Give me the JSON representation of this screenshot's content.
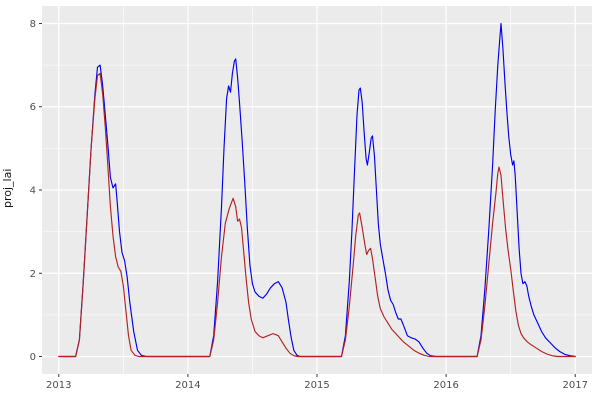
{
  "chart_data": {
    "type": "line",
    "title": "",
    "xlabel": "",
    "ylabel": "proj_lai",
    "legend": "none",
    "grid": true,
    "panel_background": "#EBEBEB",
    "grid_color": "#FFFFFF",
    "axis_text_color": "#4D4D4D",
    "tick_mark_color": "#333333",
    "xlim": [
      2012.87,
      2017.13
    ],
    "ylim": [
      -0.42,
      8.42
    ],
    "x_ticks": [
      2013,
      2014,
      2015,
      2016,
      2017
    ],
    "x_minor_ticks": [
      2013.5,
      2014.5,
      2015.5,
      2016.5
    ],
    "y_ticks": [
      0,
      2,
      4,
      6,
      8
    ],
    "y_minor_ticks": [
      1,
      3,
      5,
      7
    ],
    "series": [
      {
        "name": "blue-series",
        "color": "#0000EE",
        "points": [
          [
            2013.0,
            0
          ],
          [
            2013.13,
            0
          ],
          [
            2013.16,
            0.4
          ],
          [
            2013.19,
            1.8
          ],
          [
            2013.22,
            3.4
          ],
          [
            2013.25,
            5.0
          ],
          [
            2013.28,
            6.3
          ],
          [
            2013.3,
            6.95
          ],
          [
            2013.32,
            7.0
          ],
          [
            2013.34,
            6.5
          ],
          [
            2013.36,
            5.8
          ],
          [
            2013.38,
            5.1
          ],
          [
            2013.4,
            4.3
          ],
          [
            2013.42,
            4.05
          ],
          [
            2013.44,
            4.15
          ],
          [
            2013.45,
            3.8
          ],
          [
            2013.47,
            3.0
          ],
          [
            2013.49,
            2.5
          ],
          [
            2013.51,
            2.3
          ],
          [
            2013.53,
            1.9
          ],
          [
            2013.55,
            1.3
          ],
          [
            2013.58,
            0.6
          ],
          [
            2013.61,
            0.15
          ],
          [
            2013.64,
            0.03
          ],
          [
            2013.68,
            0
          ],
          [
            2014.17,
            0
          ],
          [
            2014.2,
            0.5
          ],
          [
            2014.23,
            1.8
          ],
          [
            2014.26,
            3.6
          ],
          [
            2014.28,
            5.0
          ],
          [
            2014.3,
            6.2
          ],
          [
            2014.315,
            6.5
          ],
          [
            2014.33,
            6.35
          ],
          [
            2014.345,
            6.8
          ],
          [
            2014.36,
            7.1
          ],
          [
            2014.37,
            7.15
          ],
          [
            2014.385,
            6.7
          ],
          [
            2014.4,
            6.1
          ],
          [
            2014.42,
            5.2
          ],
          [
            2014.44,
            4.2
          ],
          [
            2014.46,
            3.1
          ],
          [
            2014.48,
            2.2
          ],
          [
            2014.5,
            1.75
          ],
          [
            2014.52,
            1.55
          ],
          [
            2014.55,
            1.45
          ],
          [
            2014.58,
            1.4
          ],
          [
            2014.61,
            1.5
          ],
          [
            2014.64,
            1.65
          ],
          [
            2014.67,
            1.75
          ],
          [
            2014.7,
            1.8
          ],
          [
            2014.73,
            1.65
          ],
          [
            2014.76,
            1.3
          ],
          [
            2014.78,
            0.85
          ],
          [
            2014.8,
            0.45
          ],
          [
            2014.82,
            0.15
          ],
          [
            2014.845,
            0.03
          ],
          [
            2014.87,
            0
          ],
          [
            2015.19,
            0
          ],
          [
            2015.22,
            0.5
          ],
          [
            2015.25,
            1.8
          ],
          [
            2015.27,
            3.0
          ],
          [
            2015.29,
            4.4
          ],
          [
            2015.31,
            5.8
          ],
          [
            2015.325,
            6.4
          ],
          [
            2015.335,
            6.45
          ],
          [
            2015.35,
            6.1
          ],
          [
            2015.365,
            5.4
          ],
          [
            2015.38,
            4.75
          ],
          [
            2015.39,
            4.6
          ],
          [
            2015.405,
            4.9
          ],
          [
            2015.42,
            5.25
          ],
          [
            2015.43,
            5.3
          ],
          [
            2015.445,
            4.8
          ],
          [
            2015.46,
            4.0
          ],
          [
            2015.475,
            3.2
          ],
          [
            2015.49,
            2.7
          ],
          [
            2015.51,
            2.35
          ],
          [
            2015.53,
            2.0
          ],
          [
            2015.55,
            1.6
          ],
          [
            2015.57,
            1.35
          ],
          [
            2015.59,
            1.25
          ],
          [
            2015.61,
            1.05
          ],
          [
            2015.63,
            0.9
          ],
          [
            2015.65,
            0.9
          ],
          [
            2015.67,
            0.75
          ],
          [
            2015.7,
            0.5
          ],
          [
            2015.73,
            0.45
          ],
          [
            2015.76,
            0.42
          ],
          [
            2015.79,
            0.35
          ],
          [
            2015.82,
            0.2
          ],
          [
            2015.85,
            0.08
          ],
          [
            2015.88,
            0.02
          ],
          [
            2015.92,
            0
          ],
          [
            2016.24,
            0
          ],
          [
            2016.27,
            0.5
          ],
          [
            2016.3,
            1.6
          ],
          [
            2016.33,
            3.0
          ],
          [
            2016.36,
            4.6
          ],
          [
            2016.38,
            5.9
          ],
          [
            2016.4,
            7.0
          ],
          [
            2016.415,
            7.6
          ],
          [
            2016.425,
            8.0
          ],
          [
            2016.44,
            7.4
          ],
          [
            2016.455,
            6.6
          ],
          [
            2016.47,
            5.9
          ],
          [
            2016.485,
            5.3
          ],
          [
            2016.5,
            4.85
          ],
          [
            2016.515,
            4.6
          ],
          [
            2016.525,
            4.7
          ],
          [
            2016.535,
            4.35
          ],
          [
            2016.55,
            3.5
          ],
          [
            2016.565,
            2.6
          ],
          [
            2016.58,
            2.0
          ],
          [
            2016.595,
            1.75
          ],
          [
            2016.61,
            1.8
          ],
          [
            2016.625,
            1.7
          ],
          [
            2016.64,
            1.45
          ],
          [
            2016.66,
            1.2
          ],
          [
            2016.68,
            1.0
          ],
          [
            2016.71,
            0.8
          ],
          [
            2016.74,
            0.6
          ],
          [
            2016.77,
            0.45
          ],
          [
            2016.8,
            0.35
          ],
          [
            2016.84,
            0.22
          ],
          [
            2016.88,
            0.12
          ],
          [
            2016.92,
            0.05
          ],
          [
            2016.96,
            0.02
          ],
          [
            2017.0,
            0
          ]
        ]
      },
      {
        "name": "red-series",
        "color": "#B22222",
        "points": [
          [
            2013.0,
            0
          ],
          [
            2013.13,
            0
          ],
          [
            2013.16,
            0.4
          ],
          [
            2013.19,
            1.8
          ],
          [
            2013.22,
            3.4
          ],
          [
            2013.25,
            5.0
          ],
          [
            2013.28,
            6.2
          ],
          [
            2013.3,
            6.75
          ],
          [
            2013.32,
            6.8
          ],
          [
            2013.34,
            6.3
          ],
          [
            2013.36,
            5.5
          ],
          [
            2013.38,
            4.6
          ],
          [
            2013.4,
            3.6
          ],
          [
            2013.42,
            2.9
          ],
          [
            2013.44,
            2.4
          ],
          [
            2013.46,
            2.15
          ],
          [
            2013.48,
            2.05
          ],
          [
            2013.5,
            1.7
          ],
          [
            2013.52,
            1.1
          ],
          [
            2013.54,
            0.5
          ],
          [
            2013.56,
            0.15
          ],
          [
            2013.59,
            0.03
          ],
          [
            2013.62,
            0
          ],
          [
            2014.17,
            0
          ],
          [
            2014.2,
            0.4
          ],
          [
            2014.23,
            1.3
          ],
          [
            2014.26,
            2.4
          ],
          [
            2014.29,
            3.2
          ],
          [
            2014.32,
            3.55
          ],
          [
            2014.35,
            3.8
          ],
          [
            2014.37,
            3.6
          ],
          [
            2014.385,
            3.25
          ],
          [
            2014.4,
            3.3
          ],
          [
            2014.415,
            3.1
          ],
          [
            2014.43,
            2.6
          ],
          [
            2014.45,
            1.9
          ],
          [
            2014.47,
            1.3
          ],
          [
            2014.49,
            0.9
          ],
          [
            2014.52,
            0.6
          ],
          [
            2014.55,
            0.5
          ],
          [
            2014.58,
            0.45
          ],
          [
            2014.62,
            0.5
          ],
          [
            2014.66,
            0.55
          ],
          [
            2014.7,
            0.5
          ],
          [
            2014.73,
            0.35
          ],
          [
            2014.76,
            0.2
          ],
          [
            2014.79,
            0.08
          ],
          [
            2014.82,
            0.02
          ],
          [
            2014.85,
            0
          ],
          [
            2015.19,
            0
          ],
          [
            2015.22,
            0.4
          ],
          [
            2015.25,
            1.2
          ],
          [
            2015.28,
            2.2
          ],
          [
            2015.3,
            2.9
          ],
          [
            2015.32,
            3.4
          ],
          [
            2015.33,
            3.45
          ],
          [
            2015.35,
            3.1
          ],
          [
            2015.37,
            2.7
          ],
          [
            2015.385,
            2.45
          ],
          [
            2015.4,
            2.55
          ],
          [
            2015.415,
            2.6
          ],
          [
            2015.43,
            2.35
          ],
          [
            2015.45,
            1.9
          ],
          [
            2015.47,
            1.45
          ],
          [
            2015.49,
            1.15
          ],
          [
            2015.52,
            0.95
          ],
          [
            2015.55,
            0.8
          ],
          [
            2015.58,
            0.65
          ],
          [
            2015.61,
            0.55
          ],
          [
            2015.64,
            0.45
          ],
          [
            2015.67,
            0.35
          ],
          [
            2015.71,
            0.25
          ],
          [
            2015.75,
            0.15
          ],
          [
            2015.79,
            0.08
          ],
          [
            2015.83,
            0.03
          ],
          [
            2015.87,
            0
          ],
          [
            2016.24,
            0
          ],
          [
            2016.27,
            0.4
          ],
          [
            2016.3,
            1.2
          ],
          [
            2016.33,
            2.2
          ],
          [
            2016.36,
            3.2
          ],
          [
            2016.385,
            3.9
          ],
          [
            2016.4,
            4.4
          ],
          [
            2016.41,
            4.55
          ],
          [
            2016.425,
            4.35
          ],
          [
            2016.44,
            3.8
          ],
          [
            2016.46,
            3.1
          ],
          [
            2016.48,
            2.55
          ],
          [
            2016.5,
            2.1
          ],
          [
            2016.52,
            1.6
          ],
          [
            2016.54,
            1.1
          ],
          [
            2016.56,
            0.75
          ],
          [
            2016.58,
            0.55
          ],
          [
            2016.6,
            0.45
          ],
          [
            2016.63,
            0.35
          ],
          [
            2016.66,
            0.28
          ],
          [
            2016.7,
            0.2
          ],
          [
            2016.74,
            0.12
          ],
          [
            2016.78,
            0.06
          ],
          [
            2016.82,
            0.02
          ],
          [
            2016.86,
            0
          ],
          [
            2017.0,
            0
          ]
        ]
      }
    ]
  }
}
